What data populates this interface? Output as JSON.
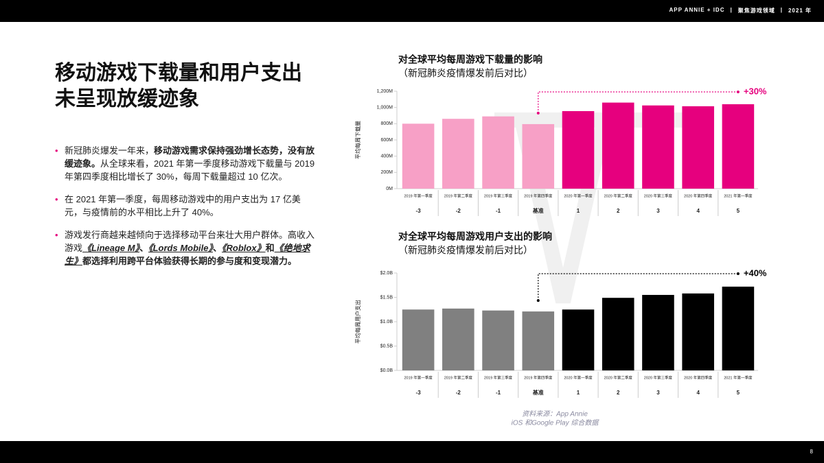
{
  "header": {
    "brand": "APP ANNIE + IDC",
    "section": "聚焦游戏领域",
    "year": "2021 年"
  },
  "heading": [
    "移动游戏下载量和用户支出",
    "未呈现放缓迹象"
  ],
  "bullets": [
    [
      {
        "text": "新冠肺炎爆发一年来，",
        "style": "normal"
      },
      {
        "text": "移动游戏需求保持强劲增长态势，没有放缓迹象。",
        "style": "bold"
      },
      {
        "text": "从全球来看，2021 年第一季度移动游戏下载量与 2019 年第四季度相比增长了 30%，每周下载量超过 10 亿次。",
        "style": "normal"
      }
    ],
    [
      {
        "text": "在 2021 年第一季度，每周移动游戏中的用户支出为 17 亿美元，与疫情前的水平相比上升了 40%。",
        "style": "normal"
      }
    ],
    [
      {
        "text": "游戏发行商越来越倾向于选择移动平台来壮大用户群体。高收入游戏",
        "style": "normal"
      },
      {
        "text": "《Lineage M》",
        "style": "game"
      },
      {
        "text": "、",
        "style": "bold"
      },
      {
        "text": "《Lords Mobile》",
        "style": "game"
      },
      {
        "text": "、",
        "style": "bold"
      },
      {
        "text": "《Roblox》",
        "style": "game"
      },
      {
        "text": "和",
        "style": "bold"
      },
      {
        "text": "《绝地求生》",
        "style": "game"
      },
      {
        "text": "都选择利用跨平台体验获得长期的参与度和变现潜力。",
        "style": "bold"
      }
    ]
  ],
  "source": [
    "资料来源：App Annie",
    "iOS 和Google Play 综合数据"
  ],
  "page_number": "8",
  "chart_data": [
    {
      "type": "bar",
      "title": "对全球平均每周游戏下载量的影响",
      "subtitle": "（新冠肺炎疫情爆发前后对比）",
      "y_label": "平均每周下载量",
      "categories": [
        "2019 年第一季度",
        "2019 年第二季度",
        "2019 年第三季度",
        "2019 年第四季度",
        "2020 年第一季度",
        "2020 年第二季度",
        "2020 年第三季度",
        "2020 年第四季度",
        "2021 年第一季度"
      ],
      "periods": [
        "-3",
        "-2",
        "-1",
        "基准",
        "1",
        "2",
        "3",
        "4",
        "5"
      ],
      "values": [
        800,
        860,
        890,
        795,
        955,
        1060,
        1025,
        1015,
        1040
      ],
      "colors": [
        "#f7a0c6",
        "#f7a0c6",
        "#f7a0c6",
        "#f7a0c6",
        "#e6007e",
        "#e6007e",
        "#e6007e",
        "#e6007e",
        "#e6007e"
      ],
      "ylim": [
        0,
        1200
      ],
      "yticks": [
        {
          "value": 0,
          "label": "0M"
        },
        {
          "value": 200,
          "label": "200M"
        },
        {
          "value": 400,
          "label": "400M"
        },
        {
          "value": 600,
          "label": "600M"
        },
        {
          "value": 800,
          "label": "800M"
        },
        {
          "value": 1000,
          "label": "1,000M"
        },
        {
          "value": 1200,
          "label": "1,200M"
        }
      ],
      "annotation": "+30%",
      "annotation_color": "#e6007e"
    },
    {
      "type": "bar",
      "title": "对全球平均每周游戏用户支出的影响",
      "subtitle": "（新冠肺炎疫情爆发前后对比）",
      "y_label": "平均每周用户支出",
      "categories": [
        "2019 年第一季度",
        "2019 年第二季度",
        "2019 年第三季度",
        "2019 年第四季度",
        "2020 年第一季度",
        "2020 年第二季度",
        "2020 年第三季度",
        "2020 年第四季度",
        "2021 年第一季度"
      ],
      "periods": [
        "-3",
        "-2",
        "-1",
        "基准",
        "1",
        "2",
        "3",
        "4",
        "5"
      ],
      "values": [
        1.25,
        1.27,
        1.23,
        1.21,
        1.25,
        1.49,
        1.55,
        1.58,
        1.72
      ],
      "colors": [
        "#808080",
        "#808080",
        "#808080",
        "#808080",
        "#000000",
        "#000000",
        "#000000",
        "#000000",
        "#000000"
      ],
      "ylim": [
        0,
        2
      ],
      "yticks": [
        {
          "value": 0,
          "label": "$0.0B"
        },
        {
          "value": 0.5,
          "label": "$0.5B"
        },
        {
          "value": 1,
          "label": "$1.0B"
        },
        {
          "value": 1.5,
          "label": "$1.5B"
        },
        {
          "value": 2,
          "label": "$2.0B"
        }
      ],
      "annotation": "+40%",
      "annotation_color": "#000000"
    }
  ]
}
